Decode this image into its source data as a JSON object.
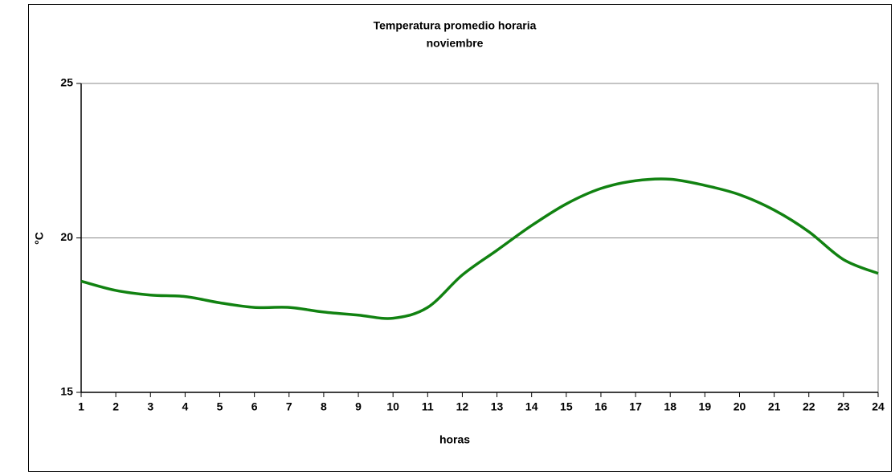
{
  "chart_data": {
    "type": "line",
    "title": "Temperatura promedio horaria",
    "subtitle": "noviembre",
    "x_label": "horas",
    "y_label": "°C",
    "x": [
      1,
      2,
      3,
      4,
      5,
      6,
      7,
      8,
      9,
      10,
      11,
      12,
      13,
      14,
      15,
      16,
      17,
      18,
      19,
      20,
      21,
      22,
      23,
      24
    ],
    "series": [
      {
        "name": "noviembre",
        "color": "#118211",
        "values": [
          18.6,
          18.3,
          18.15,
          18.1,
          17.9,
          17.75,
          17.75,
          17.6,
          17.5,
          17.4,
          17.75,
          18.8,
          19.6,
          20.4,
          21.1,
          21.6,
          21.85,
          21.9,
          21.7,
          21.4,
          20.9,
          20.2,
          19.3,
          18.85
        ]
      }
    ],
    "xlim": [
      1,
      24
    ],
    "xticks": [
      1,
      2,
      3,
      4,
      5,
      6,
      7,
      8,
      9,
      10,
      11,
      12,
      13,
      14,
      15,
      16,
      17,
      18,
      19,
      20,
      21,
      22,
      23,
      24
    ],
    "ylim": [
      15,
      25
    ],
    "yticks": [
      15,
      20,
      25
    ],
    "grid": true
  }
}
